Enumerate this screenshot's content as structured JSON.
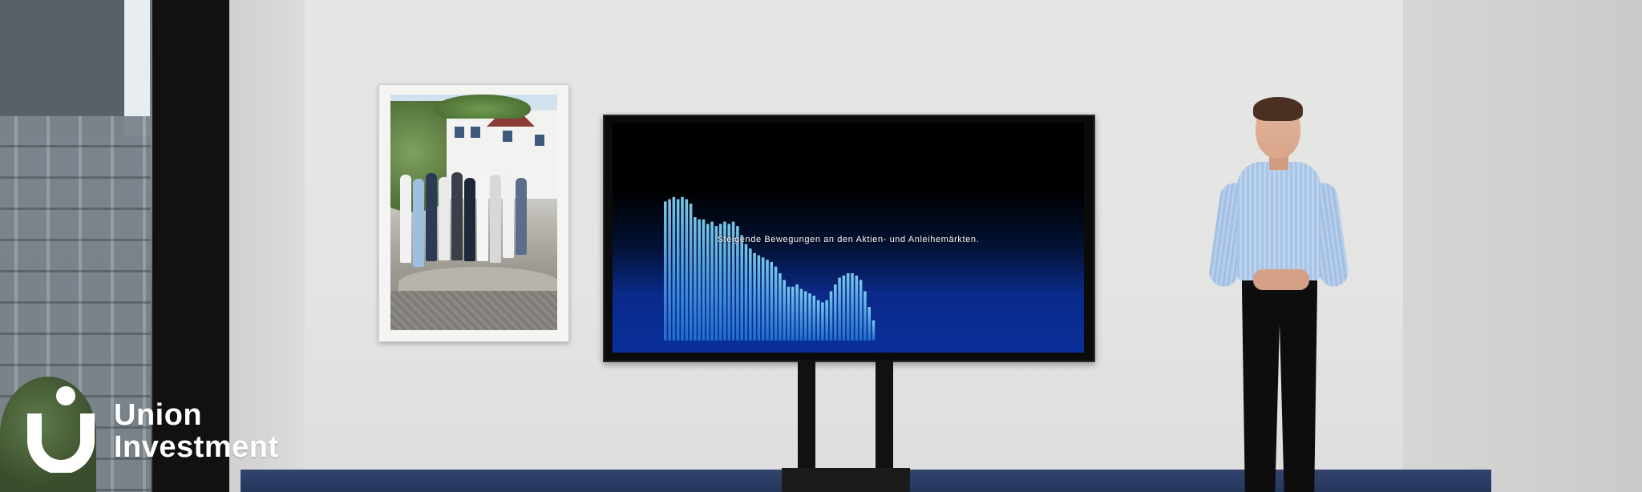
{
  "screen": {
    "caption": "Steigende Bewegungen an den Aktien- und Anleihemärkten.",
    "bar_levels": [
      0.62,
      0.63,
      0.64,
      0.63,
      0.64,
      0.63,
      0.61,
      0.55,
      0.54,
      0.54,
      0.52,
      0.53,
      0.51,
      0.52,
      0.53,
      0.52,
      0.53,
      0.51,
      0.47,
      0.43,
      0.41,
      0.39,
      0.38,
      0.37,
      0.36,
      0.35,
      0.33,
      0.3,
      0.27,
      0.24,
      0.24,
      0.25,
      0.23,
      0.22,
      0.21,
      0.2,
      0.18,
      0.17,
      0.18,
      0.22,
      0.25,
      0.28,
      0.29,
      0.3,
      0.3,
      0.29,
      0.27,
      0.22,
      0.15,
      0.09
    ]
  },
  "brand": {
    "line1": "Union",
    "line2": "Investment"
  },
  "colors": {
    "bar_light": "#7fd0f5",
    "bar_dark": "#1f6fd0",
    "screen_glow": "#0a2f9a"
  }
}
